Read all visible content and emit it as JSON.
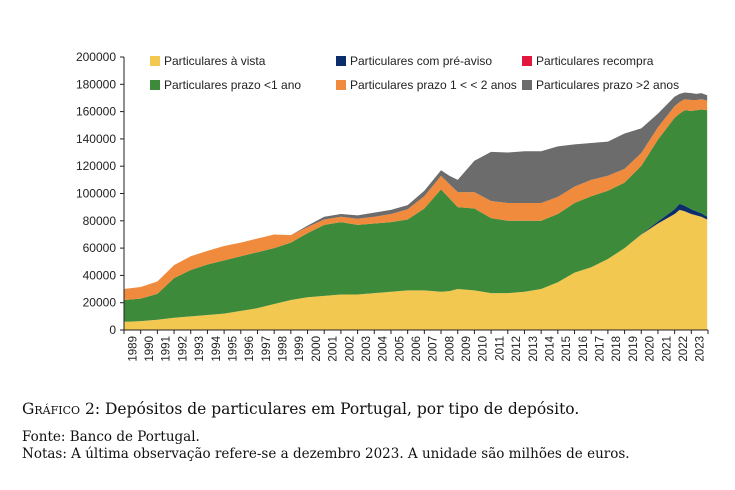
{
  "chart_data": {
    "type": "area",
    "stacked": true,
    "title": "",
    "xlabel": "",
    "ylabel": "",
    "ylim": [
      0,
      200000
    ],
    "yticks": [
      0,
      20000,
      40000,
      60000,
      80000,
      100000,
      120000,
      140000,
      160000,
      180000,
      200000
    ],
    "ytick_labels": [
      "0",
      "20000",
      "40000",
      "60000",
      "80000",
      "100000",
      "120000",
      "140000",
      "160000",
      "180000",
      "200000"
    ],
    "xlim": [
      1989,
      2024
    ],
    "xtick_labels": [
      "1989",
      "1990",
      "1991",
      "1992",
      "1993",
      "1994",
      "1995",
      "1996",
      "1997",
      "1998",
      "1999",
      "2000",
      "2001",
      "2002",
      "2003",
      "2004",
      "2005",
      "2006",
      "2007",
      "2008",
      "2009",
      "2010",
      "2011",
      "2012",
      "2013",
      "2014",
      "2015",
      "2016",
      "2017",
      "2018",
      "2019",
      "2020",
      "2021",
      "2022",
      "2023"
    ],
    "x": [
      1989.0,
      1990.0,
      1991.0,
      1992.0,
      1993.0,
      1994.0,
      1995.0,
      1996.0,
      1997.0,
      1998.0,
      1999.0,
      2000.0,
      2001.0,
      2002.0,
      2003.0,
      2004.0,
      2005.0,
      2006.0,
      2007.0,
      2008.0,
      2008.5,
      2009.0,
      2010.0,
      2011.0,
      2012.0,
      2013.0,
      2014.0,
      2015.0,
      2016.0,
      2017.0,
      2018.0,
      2019.0,
      2020.0,
      2021.0,
      2022.0,
      2022.3,
      2022.6,
      2023.0,
      2023.3,
      2023.6,
      2023.95
    ],
    "series": [
      {
        "name": "Particulares à vista",
        "color": "#F2C851",
        "values": [
          6000,
          6500,
          7500,
          9000,
          10000,
          11000,
          12000,
          14000,
          16000,
          19000,
          22000,
          24000,
          25000,
          26000,
          26000,
          27000,
          28000,
          29000,
          29000,
          28000,
          28500,
          30000,
          29000,
          27000,
          27000,
          28000,
          30000,
          35000,
          42000,
          46000,
          52000,
          60000,
          70000,
          78000,
          85000,
          88000,
          87000,
          85000,
          84000,
          83000,
          81000
        ]
      },
      {
        "name": "Particulares com pré-aviso",
        "color": "#0B2D6B",
        "values": [
          0,
          0,
          0,
          0,
          0,
          0,
          0,
          0,
          0,
          0,
          0,
          0,
          0,
          0,
          0,
          0,
          0,
          0,
          0,
          0,
          0,
          0,
          0,
          0,
          0,
          0,
          0,
          0,
          0,
          0,
          0,
          0,
          200,
          1500,
          3500,
          4500,
          4000,
          3500,
          3000,
          2500,
          2000
        ]
      },
      {
        "name": "Particulares recompra",
        "color": "#E3173E",
        "values": [
          0,
          0,
          0,
          0,
          0,
          0,
          0,
          0,
          0,
          0,
          0,
          0,
          0,
          0,
          0,
          0,
          0,
          0,
          0,
          0,
          0,
          0,
          0,
          0,
          0,
          0,
          0,
          0,
          0,
          0,
          0,
          0,
          0,
          0,
          0,
          0,
          0,
          0,
          0,
          0,
          0
        ]
      },
      {
        "name": "Particulares prazo <1 ano",
        "color": "#3D8A3A",
        "values": [
          16000,
          16500,
          19000,
          29000,
          34000,
          37000,
          39000,
          40000,
          41000,
          41000,
          42000,
          47000,
          52000,
          53000,
          51000,
          51000,
          51000,
          52000,
          60000,
          75000,
          68000,
          60000,
          60000,
          55000,
          53000,
          52000,
          50000,
          50000,
          51000,
          52000,
          50000,
          48000,
          50000,
          60000,
          67000,
          66000,
          70000,
          72000,
          74000,
          76000,
          78000
        ]
      },
      {
        "name": "Particulares prazo 1 < < 2 anos",
        "color": "#F08A3C",
        "values": [
          8000,
          8500,
          9000,
          9500,
          10000,
          10000,
          10500,
          10000,
          10000,
          10000,
          5500,
          4500,
          4000,
          4000,
          4500,
          5000,
          6000,
          7500,
          9000,
          10000,
          10500,
          11000,
          12000,
          12500,
          13000,
          13000,
          13000,
          12500,
          12000,
          12000,
          11000,
          10000,
          9500,
          9000,
          8500,
          8500,
          8000,
          8000,
          7500,
          7500,
          7000
        ]
      },
      {
        "name": "Particulares prazo >2 anos",
        "color": "#6C6C6C",
        "values": [
          0,
          0,
          0,
          0,
          0,
          0,
          0,
          0,
          0,
          0,
          0,
          1000,
          2000,
          2000,
          2500,
          3000,
          3000,
          3000,
          4000,
          4000,
          6000,
          9000,
          23000,
          36000,
          37000,
          38000,
          38000,
          37000,
          31000,
          27000,
          25000,
          26000,
          18000,
          10000,
          7000,
          6000,
          5000,
          5000,
          4500,
          4500,
          4000
        ]
      }
    ],
    "legend": [
      {
        "label": "Particulares à vista",
        "color": "#F2C851"
      },
      {
        "label": "Particulares com pré-aviso",
        "color": "#0B2D6B"
      },
      {
        "label": "Particulares recompra",
        "color": "#E3173E"
      },
      {
        "label": "Particulares prazo <1 ano",
        "color": "#3D8A3A"
      },
      {
        "label": "Particulares prazo 1 < < 2 anos",
        "color": "#F08A3C"
      },
      {
        "label": "Particulares prazo >2 anos",
        "color": "#6C6C6C"
      }
    ],
    "legend_position": "top",
    "grid": false
  },
  "caption": {
    "figure_label_first": "G",
    "figure_label_rest": "ráfico",
    "figure_number": "2:",
    "title": "Depósitos de particulares em Portugal, por tipo de depósito.",
    "source": "Fonte: Banco de Portugal.",
    "notes": "Notas: A última observação refere-se a dezembro 2023. A unidade são milhões de euros."
  }
}
